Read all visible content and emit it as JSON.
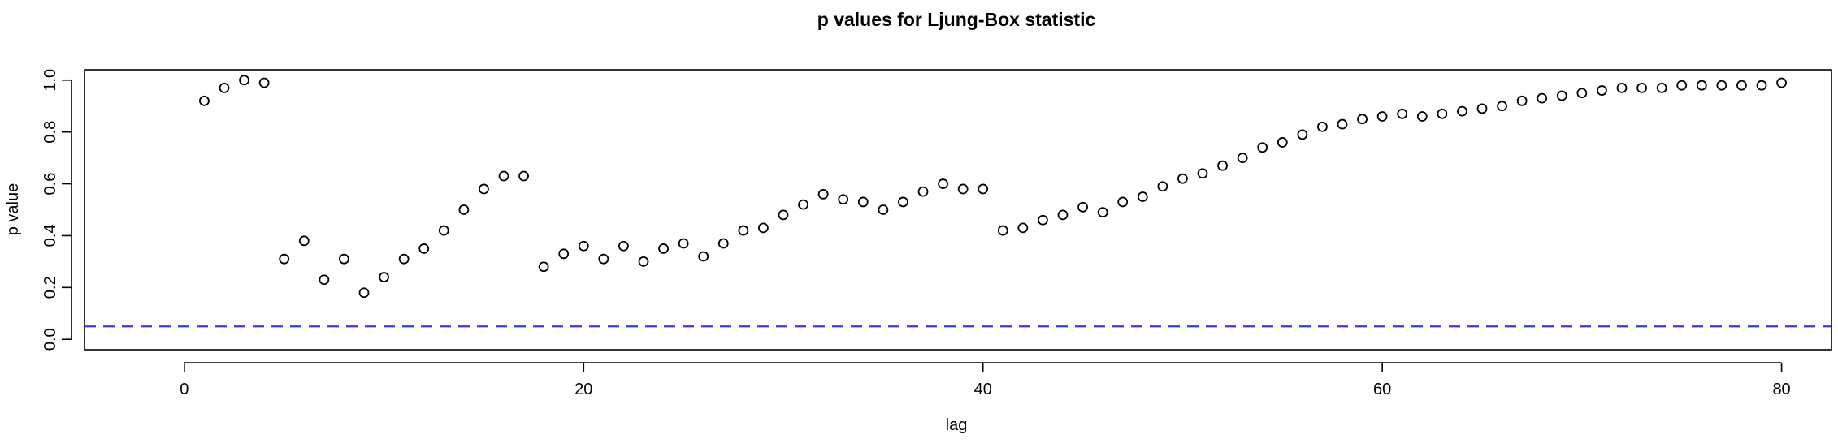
{
  "chart_data": {
    "type": "scatter",
    "title": "p values for Ljung-Box statistic",
    "xlabel": "lag",
    "ylabel": "p value",
    "xlim": [
      -5,
      82.5
    ],
    "ylim": [
      -0.04,
      1.04
    ],
    "x_ticks": [
      0,
      20,
      40,
      60,
      80
    ],
    "y_ticks": [
      0.0,
      0.2,
      0.4,
      0.6,
      0.8,
      1.0
    ],
    "x_tick_labels": [
      "0",
      "20",
      "40",
      "60",
      "80"
    ],
    "y_tick_labels": [
      "0.0",
      "0.2",
      "0.4",
      "0.6",
      "0.8",
      "1.0"
    ],
    "grid": false,
    "reference_line": {
      "y": 0.05,
      "style": "dashed",
      "color": "#3b3bdb"
    },
    "point_color": "#000000",
    "x": [
      1,
      2,
      3,
      4,
      5,
      6,
      7,
      8,
      9,
      10,
      11,
      12,
      13,
      14,
      15,
      16,
      17,
      18,
      19,
      20,
      21,
      22,
      23,
      24,
      25,
      26,
      27,
      28,
      29,
      30,
      31,
      32,
      33,
      34,
      35,
      36,
      37,
      38,
      39,
      40,
      41,
      42,
      43,
      44,
      45,
      46,
      47,
      48,
      49,
      50,
      51,
      52,
      53,
      54,
      55,
      56,
      57,
      58,
      59,
      60,
      61,
      62,
      63,
      64,
      65,
      66,
      67,
      68,
      69,
      70,
      71,
      72,
      73,
      74,
      75,
      76,
      77,
      78,
      79,
      80
    ],
    "y": [
      0.92,
      0.97,
      1.0,
      0.99,
      0.31,
      0.38,
      0.23,
      0.31,
      0.18,
      0.24,
      0.31,
      0.35,
      0.42,
      0.5,
      0.58,
      0.63,
      0.63,
      0.28,
      0.33,
      0.36,
      0.31,
      0.36,
      0.3,
      0.35,
      0.37,
      0.32,
      0.37,
      0.42,
      0.43,
      0.48,
      0.52,
      0.56,
      0.54,
      0.53,
      0.5,
      0.53,
      0.57,
      0.6,
      0.58,
      0.58,
      0.42,
      0.43,
      0.46,
      0.48,
      0.51,
      0.49,
      0.53,
      0.55,
      0.59,
      0.62,
      0.64,
      0.67,
      0.7,
      0.74,
      0.76,
      0.79,
      0.82,
      0.83,
      0.85,
      0.86,
      0.87,
      0.86,
      0.87,
      0.88,
      0.89,
      0.9,
      0.92,
      0.93,
      0.94,
      0.95,
      0.96,
      0.97,
      0.97,
      0.97,
      0.98,
      0.98,
      0.98,
      0.98,
      0.98,
      0.99
    ]
  }
}
